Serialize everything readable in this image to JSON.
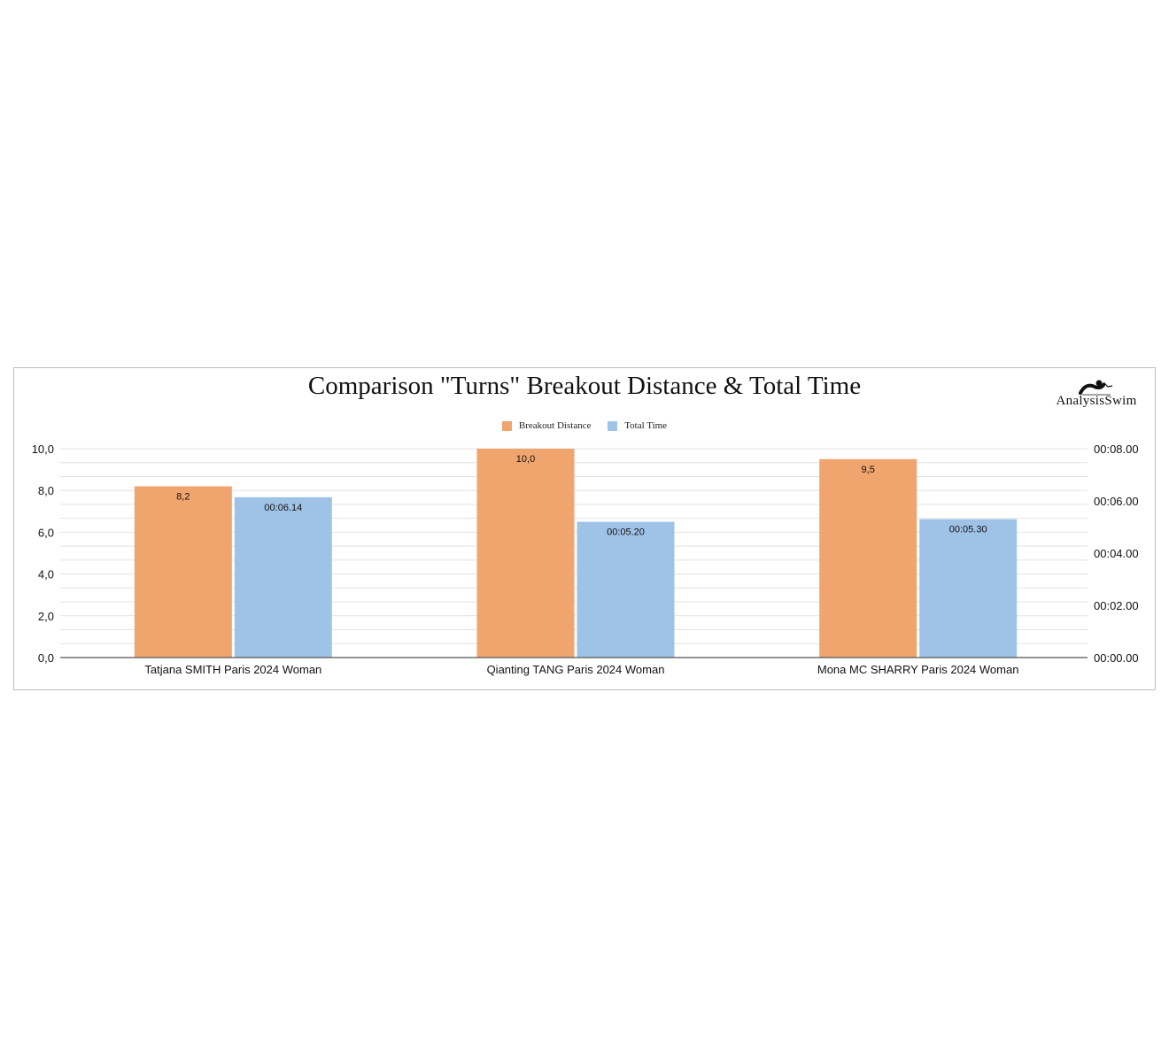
{
  "title": "Comparison \"Turns\" Breakout Distance & Total Time",
  "logo": {
    "text": "AnalysisSwim",
    "icon": "swimmer-icon"
  },
  "colors": {
    "breakout": "#f0a46e",
    "total": "#9fc3e7",
    "grid": "#e2e2e2",
    "axis": "#555555"
  },
  "chart_data": {
    "type": "bar",
    "categories": [
      "Tatjana SMITH Paris 2024 Woman",
      "Qianting TANG Paris 2024 Woman",
      "Mona MC SHARRY  Paris 2024 Woman"
    ],
    "series": [
      {
        "name": "Breakout Distance",
        "axis": "left",
        "values": [
          8.2,
          10.0,
          9.5
        ],
        "labels": [
          "8,2",
          "10,0",
          "9,5"
        ]
      },
      {
        "name": "Total Time",
        "axis": "right",
        "values": [
          6.14,
          5.2,
          5.3
        ],
        "labels": [
          "00:06.14",
          "00:05.20",
          "00:05.30"
        ]
      }
    ],
    "y_left": {
      "ylim": [
        0,
        10
      ],
      "ticks": [
        "0,0",
        "2,0",
        "4,0",
        "6,0",
        "8,0",
        "10,0"
      ]
    },
    "y_right": {
      "ylim": [
        0,
        8
      ],
      "unit": "seconds",
      "ticks": [
        "00:00.00",
        "00:02.00",
        "00:04.00",
        "00:06.00",
        "00:08.00"
      ]
    },
    "legend_position": "top-center",
    "grid": true
  }
}
